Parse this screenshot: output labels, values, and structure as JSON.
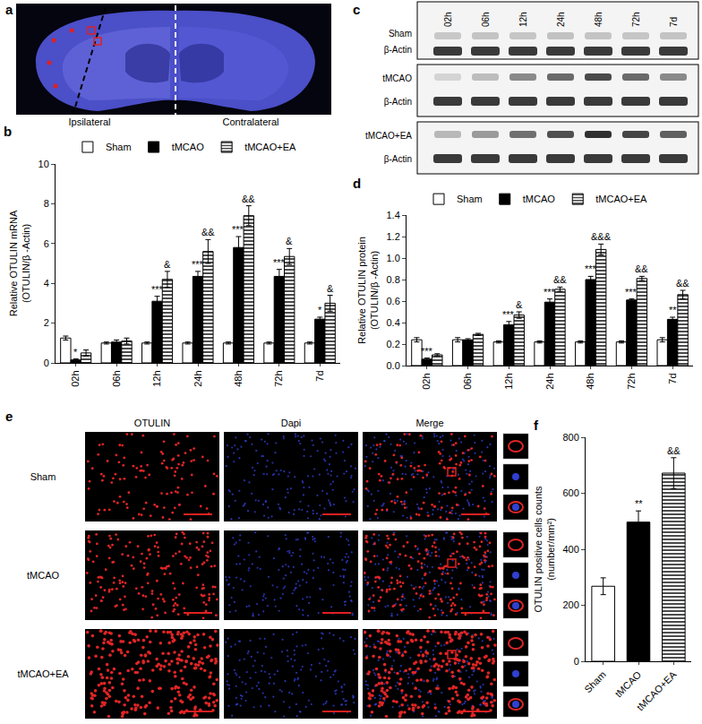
{
  "panels": {
    "a": {
      "label": "a",
      "texts": [
        "Ipsilateral",
        "Contralateral"
      ]
    },
    "c": {
      "label": "c",
      "lanes": [
        "02h",
        "06h",
        "12h",
        "24h",
        "48h",
        "72h",
        "7d"
      ],
      "blots": [
        {
          "name": "Sham",
          "loading": "β-Actin"
        },
        {
          "name": "tMCAO",
          "loading": "β-Actin"
        },
        {
          "name": "tMCAO+EA",
          "loading": "β-Actin"
        }
      ]
    },
    "e": {
      "label": "e",
      "columns": [
        "OTULIN",
        "Dapi",
        "Merge"
      ],
      "rows": [
        "Sham",
        "tMCAO",
        "tMCAO+EA"
      ]
    }
  },
  "chart_data": [
    {
      "label": "b",
      "type": "bar",
      "categories": [
        "02h",
        "06h",
        "12h",
        "24h",
        "48h",
        "72h",
        "7d"
      ],
      "ylabel": [
        "Relative OTULIN mRNA",
        "(OTULIN/β -Actin)"
      ],
      "ylim": [
        0,
        10
      ],
      "yticks": [
        0,
        2,
        4,
        6,
        8,
        10
      ],
      "grid": false,
      "legend": "top",
      "series": [
        {
          "name": "Sham",
          "color": "#ffffff",
          "marker": "solid",
          "values": [
            1.25,
            1.0,
            1.0,
            1.0,
            1.0,
            1.0,
            1.0
          ],
          "errors": [
            0.1,
            0.05,
            0.05,
            0.05,
            0.05,
            0.05,
            0.05
          ],
          "marks": [
            null,
            null,
            null,
            null,
            null,
            null,
            null
          ]
        },
        {
          "name": "tMCAO",
          "color": "#000000",
          "marker": "solid",
          "values": [
            0.15,
            1.05,
            3.1,
            4.35,
            5.8,
            4.35,
            2.2
          ],
          "errors": [
            0.05,
            0.1,
            0.25,
            0.25,
            0.55,
            0.35,
            0.1
          ],
          "marks": [
            "*",
            null,
            "***",
            "***",
            "***",
            "***",
            "*"
          ]
        },
        {
          "name": "tMCAO+EA",
          "color": "#ffffff",
          "marker": "hatch",
          "values": [
            0.5,
            1.1,
            4.2,
            5.6,
            7.4,
            5.35,
            3.0
          ],
          "errors": [
            0.15,
            0.15,
            0.4,
            0.6,
            0.5,
            0.4,
            0.4
          ],
          "marks": [
            null,
            null,
            "&",
            "&&",
            "&&",
            "&",
            "&"
          ]
        }
      ]
    },
    {
      "label": "d",
      "type": "bar",
      "categories": [
        "02h",
        "06h",
        "12h",
        "24h",
        "48h",
        "72h",
        "7d"
      ],
      "ylabel": [
        "Relative OTULIN protein",
        "(OTULIN/β -Actin)"
      ],
      "ylim": [
        0,
        1.4
      ],
      "yticks": [
        {
          "value": 0,
          "label": "0.0"
        },
        0.2,
        0.4,
        0.6,
        0.8,
        {
          "value": 1,
          "label": "1.0"
        },
        1.2,
        1.4
      ],
      "grid": false,
      "legend": "top",
      "series": [
        {
          "name": "Sham",
          "color": "#ffffff",
          "marker": "solid",
          "values": [
            0.24,
            0.24,
            0.22,
            0.22,
            0.22,
            0.22,
            0.24
          ],
          "errors": [
            0.02,
            0.02,
            0.01,
            0.01,
            0.01,
            0.01,
            0.02
          ],
          "marks": [
            null,
            null,
            null,
            null,
            null,
            null,
            null
          ]
        },
        {
          "name": "tMCAO",
          "color": "#000000",
          "marker": "solid",
          "values": [
            0.06,
            0.24,
            0.38,
            0.59,
            0.8,
            0.61,
            0.43
          ],
          "errors": [
            0.01,
            0.01,
            0.03,
            0.03,
            0.03,
            0.01,
            0.02
          ],
          "marks": [
            "***",
            null,
            "***",
            "***",
            "***",
            "***",
            "**"
          ]
        },
        {
          "name": "tMCAO+EA",
          "color": "#ffffff",
          "marker": "hatch",
          "values": [
            0.1,
            0.29,
            0.47,
            0.71,
            1.08,
            0.81,
            0.66
          ],
          "errors": [
            0.01,
            0.01,
            0.03,
            0.02,
            0.05,
            0.02,
            0.04
          ],
          "marks": [
            null,
            null,
            "&",
            "&&",
            "&&&",
            "&&",
            "&&"
          ]
        }
      ]
    },
    {
      "label": "f",
      "type": "bar",
      "categories": [
        "Sham",
        "tMCAO",
        "tMCAO+EA"
      ],
      "ylabel": [
        "OTULIN positive cells counts",
        "(number/mm²)"
      ],
      "ylim": [
        0,
        800
      ],
      "yticks": [
        0,
        200,
        400,
        600,
        800
      ],
      "grid": false,
      "series": [
        {
          "name": "Sham",
          "color": "#ffffff",
          "marker": "solid",
          "values": [
            268,
            null,
            null
          ],
          "errors": [
            30,
            null,
            null
          ],
          "marks": [
            null,
            null,
            null
          ]
        },
        {
          "name": "tMCAO",
          "color": "#000000",
          "marker": "solid",
          "values": [
            null,
            497,
            null
          ],
          "errors": [
            null,
            40,
            null
          ],
          "marks": [
            null,
            "**",
            null
          ]
        },
        {
          "name": "tMCAO+EA",
          "color": "#ffffff",
          "marker": "hatch",
          "values": [
            null,
            null,
            672
          ],
          "errors": [
            null,
            null,
            55
          ],
          "marks": [
            null,
            null,
            "&&"
          ]
        }
      ]
    }
  ]
}
